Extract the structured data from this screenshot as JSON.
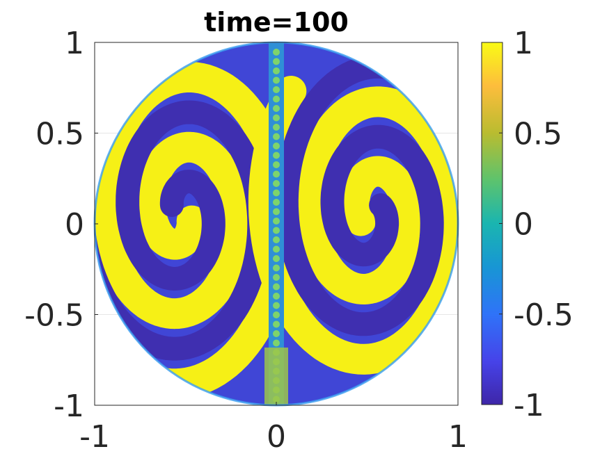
{
  "chart_data": {
    "type": "heatmap",
    "title": "time=100",
    "xlabel": "",
    "ylabel": "",
    "xlim": [
      -1,
      1
    ],
    "ylim": [
      -1,
      1
    ],
    "x_ticks": [
      -1,
      0,
      1
    ],
    "x_tick_labels": [
      "-1",
      "0",
      "1"
    ],
    "y_ticks": [
      -1,
      -0.5,
      0,
      0.5,
      1
    ],
    "y_tick_labels": [
      "-1",
      "-0.5",
      "0",
      "0.5",
      "1"
    ],
    "grid": true,
    "domain_shape": "unit disk",
    "pattern": "two symmetric counter-rotating spiral vortices, left and right of x=0",
    "colorbar": {
      "colormap": "parula",
      "range": [
        -1,
        1
      ],
      "ticks": [
        -1,
        -0.5,
        0,
        0.5,
        1
      ],
      "tick_labels": [
        "-1",
        "-0.5",
        "0",
        "0.5",
        "1"
      ]
    },
    "colors": {
      "low": "#3e26a8",
      "mid": "#1ab5b0",
      "high": "#f9fb15"
    }
  }
}
